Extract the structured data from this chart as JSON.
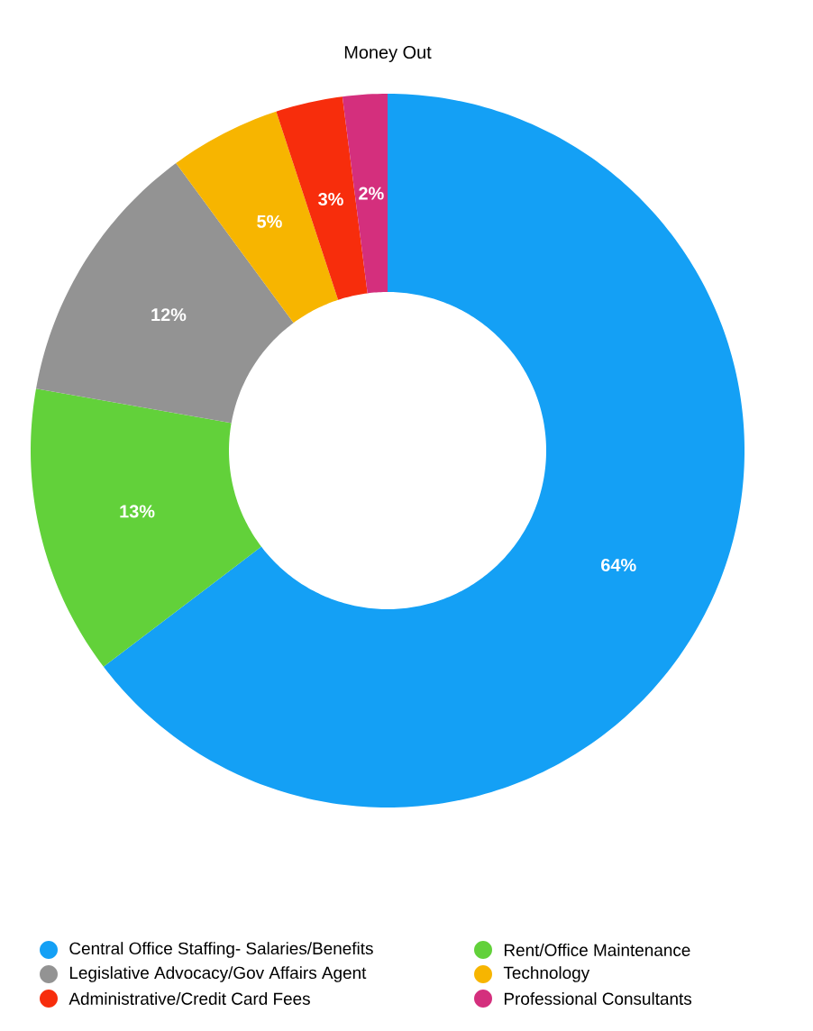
{
  "chart_data": {
    "type": "donut",
    "title": "Money Out",
    "categories": [
      "Central Office Staffing- Salaries/Benefits",
      "Rent/Office Maintenance",
      "Legislative Advocacy/Gov Affairs Agent",
      "Technology",
      "Administrative/Credit Card Fees",
      "Professional Consultants"
    ],
    "values": [
      64,
      13,
      12,
      5,
      3,
      2
    ],
    "value_labels": [
      "64%",
      "13%",
      "12%",
      "5%",
      "3%",
      "2%"
    ],
    "colors": [
      "#14a0f5",
      "#62d13a",
      "#939393",
      "#f7b500",
      "#f72d0c",
      "#d42f7d"
    ],
    "legend": "bottom"
  }
}
